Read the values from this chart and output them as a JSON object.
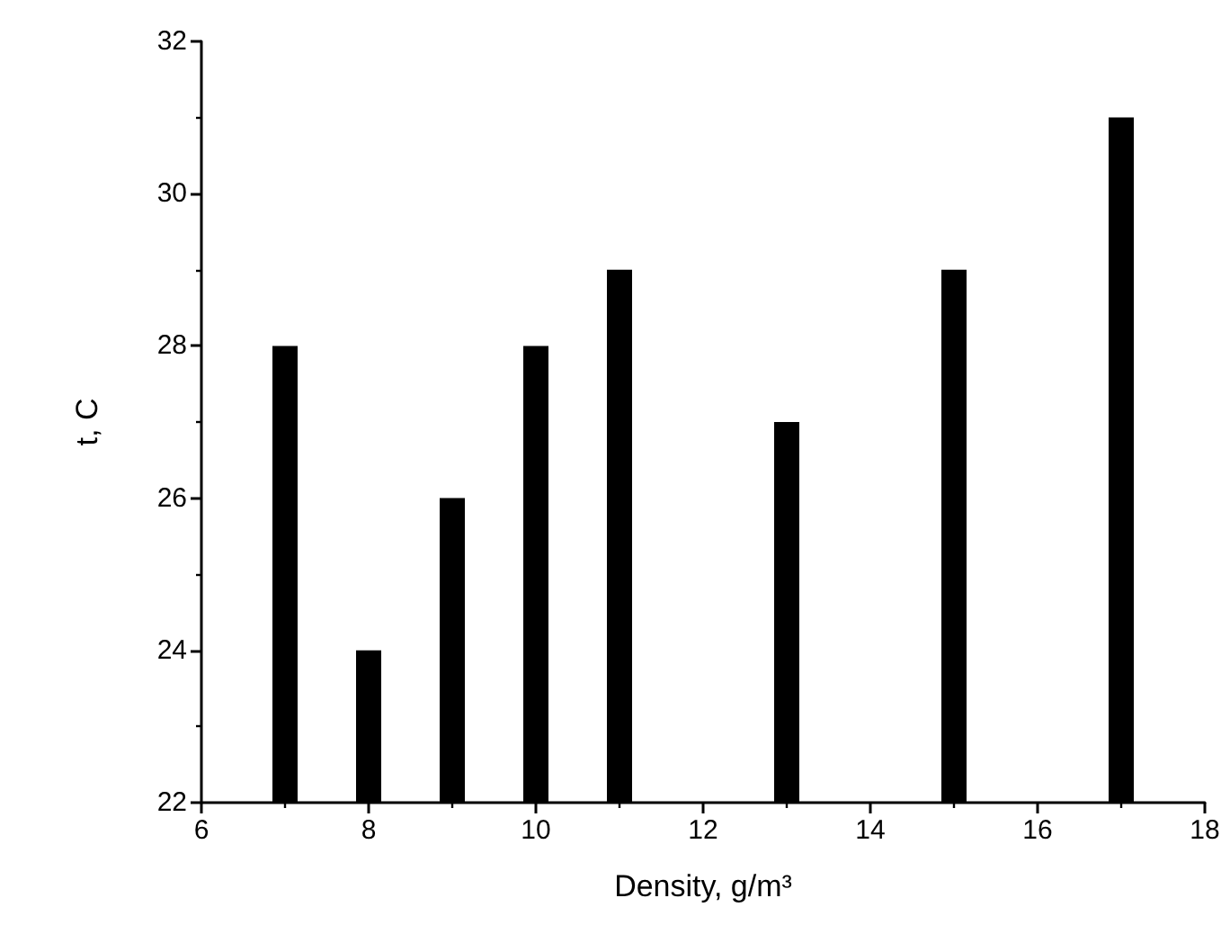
{
  "chart_data": {
    "type": "bar",
    "xlabel": "Density, g/m³",
    "ylabel": "t, C",
    "x": [
      7,
      8,
      9,
      10,
      11,
      13,
      15,
      17
    ],
    "series": [
      {
        "color": "#000000",
        "values": [
          28,
          24,
          26,
          28,
          29,
          27,
          29,
          31
        ]
      }
    ],
    "xlim": [
      6,
      18
    ],
    "xticks": [
      6,
      8,
      10,
      12,
      14,
      16,
      18
    ],
    "ylim": [
      22,
      32
    ],
    "yticks": [
      22,
      24,
      26,
      28,
      30,
      32
    ],
    "grid": false
  }
}
